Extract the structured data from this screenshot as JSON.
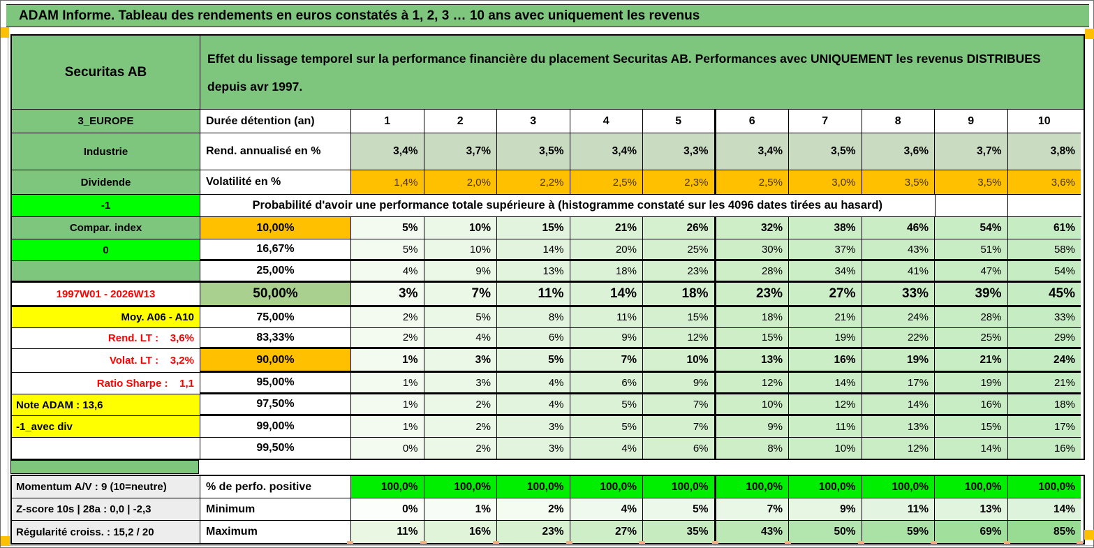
{
  "banner": {
    "text": "ADAM Informe. Tableau des rendements en euros constatés à 1, 2, 3 … 10 ans avec uniquement les revenus"
  },
  "asset": {
    "name": "Securitas AB",
    "description": "Effet du lissage temporel sur la performance financière du placement Securitas AB. Performances avec UNIQUEMENT les revenus DISTRIBUES depuis avr 1997.",
    "zone": "3_EUROPE",
    "sector": "Industrie",
    "category": "Dividende",
    "flag_top": "-1",
    "compare_label": "Compar. index",
    "flag_zero": "0",
    "period": "1997W01 - 2026W13",
    "moy_label": "Moy. A06 - A10",
    "rend_lt": "Rend. LT :    3,6%",
    "volat_lt": "Volat. LT :    3,2%",
    "ratio_sharpe": "Ratio Sharpe :    1,1",
    "note_adam": "Note ADAM : 13,6",
    "avec_div": "-1_avec div",
    "momentum": "Momentum A/V : 9 (10=neutre)",
    "zscore": "Z-score 10s | 28a : 0,0 | -2,3",
    "regularite": "Régularité croiss. : 15,2 / 20"
  },
  "table": {
    "duration_label": "Durée détention (an)",
    "years": [
      "1",
      "2",
      "3",
      "4",
      "5",
      "6",
      "7",
      "8",
      "9",
      "10"
    ],
    "rend_label": "Rend. annualisé en %",
    "rend_values": [
      "3,4%",
      "3,7%",
      "3,5%",
      "3,4%",
      "3,3%",
      "3,4%",
      "3,5%",
      "3,6%",
      "3,7%",
      "3,8%"
    ],
    "volat_label": "Volatilité en %",
    "volat_values": [
      "1,4%",
      "2,0%",
      "2,2%",
      "2,5%",
      "2,3%",
      "2,5%",
      "3,0%",
      "3,5%",
      "3,5%",
      "3,6%"
    ],
    "prob_header": "Probabilité d'avoir une performance totale supérieure à (histogramme constaté sur les 4096 dates tirées au hasard)",
    "prob_rows": [
      {
        "threshold": "10,00%",
        "values": [
          "5%",
          "10%",
          "15%",
          "21%",
          "26%",
          "32%",
          "38%",
          "46%",
          "54%",
          "61%"
        ]
      },
      {
        "threshold": "16,67%",
        "values": [
          "5%",
          "10%",
          "14%",
          "20%",
          "25%",
          "30%",
          "37%",
          "43%",
          "51%",
          "58%"
        ]
      },
      {
        "threshold": "25,00%",
        "values": [
          "4%",
          "9%",
          "13%",
          "18%",
          "23%",
          "28%",
          "34%",
          "41%",
          "47%",
          "54%"
        ]
      },
      {
        "threshold": "50,00%",
        "values": [
          "3%",
          "7%",
          "11%",
          "14%",
          "18%",
          "23%",
          "27%",
          "33%",
          "39%",
          "45%"
        ]
      },
      {
        "threshold": "75,00%",
        "values": [
          "2%",
          "5%",
          "8%",
          "11%",
          "15%",
          "18%",
          "21%",
          "24%",
          "28%",
          "33%"
        ]
      },
      {
        "threshold": "83,33%",
        "values": [
          "2%",
          "4%",
          "6%",
          "9%",
          "12%",
          "15%",
          "19%",
          "22%",
          "25%",
          "29%"
        ]
      },
      {
        "threshold": "90,00%",
        "values": [
          "1%",
          "3%",
          "5%",
          "7%",
          "10%",
          "13%",
          "16%",
          "19%",
          "21%",
          "24%"
        ]
      },
      {
        "threshold": "95,00%",
        "values": [
          "1%",
          "3%",
          "4%",
          "6%",
          "9%",
          "12%",
          "14%",
          "17%",
          "19%",
          "21%"
        ]
      },
      {
        "threshold": "97,50%",
        "values": [
          "1%",
          "2%",
          "4%",
          "5%",
          "7%",
          "10%",
          "12%",
          "14%",
          "16%",
          "18%"
        ]
      },
      {
        "threshold": "99,00%",
        "values": [
          "1%",
          "2%",
          "3%",
          "5%",
          "7%",
          "9%",
          "11%",
          "13%",
          "15%",
          "17%"
        ]
      },
      {
        "threshold": "99,50%",
        "values": [
          "0%",
          "2%",
          "3%",
          "4%",
          "6%",
          "8%",
          "10%",
          "12%",
          "14%",
          "16%"
        ]
      }
    ],
    "positive_label": "% de perfo. positive",
    "positive_values": [
      "100,0%",
      "100,0%",
      "100,0%",
      "100,0%",
      "100,0%",
      "100,0%",
      "100,0%",
      "100,0%",
      "100,0%",
      "100,0%"
    ],
    "min_label": "Minimum",
    "min_values": [
      "0%",
      "1%",
      "2%",
      "4%",
      "5%",
      "7%",
      "9%",
      "11%",
      "13%",
      "14%"
    ],
    "max_label": "Maximum",
    "max_values": [
      "11%",
      "16%",
      "23%",
      "27%",
      "35%",
      "43%",
      "50%",
      "59%",
      "69%",
      "85%"
    ]
  },
  "colors": {
    "header_green": "#7EC57E",
    "bright_green": "#00FF00",
    "orange": "#FFC000",
    "green_50": "#A9D08E",
    "rend_green": "#C9DCC1",
    "yellow": "#FFFF00",
    "gray_label": "#EDEDED",
    "red_text": "#FF0000",
    "volat_text": "#4A3400",
    "positive_fill": "#00EE00",
    "white": "#FFFFFF",
    "prob_shades": [
      "#F3FAEF",
      "#EBF7E7",
      "#E3F4DE",
      "#DCF2D6",
      "#D5F0CF",
      "#CEEEC8",
      "#CCEEC7",
      "#CAEDC6",
      "#C8EDC5",
      "#C6ECC3"
    ],
    "min_shades": [
      "#FCFEFB",
      "#F8FCF6",
      "#F4FBF1",
      "#F0F9ED",
      "#ECF8E9",
      "#E9F7E6",
      "#E6F6E3",
      "#E3F5E0",
      "#E0F4DE",
      "#DEF3DC"
    ],
    "max_shades": [
      "#E9F7E3",
      "#E0F4DA",
      "#D7F1D1",
      "#CEEEC8",
      "#C5EBBF",
      "#BCE8B6",
      "#B3E5AE",
      "#AAE2A5",
      "#A1DF9D",
      "#98DC94"
    ]
  }
}
